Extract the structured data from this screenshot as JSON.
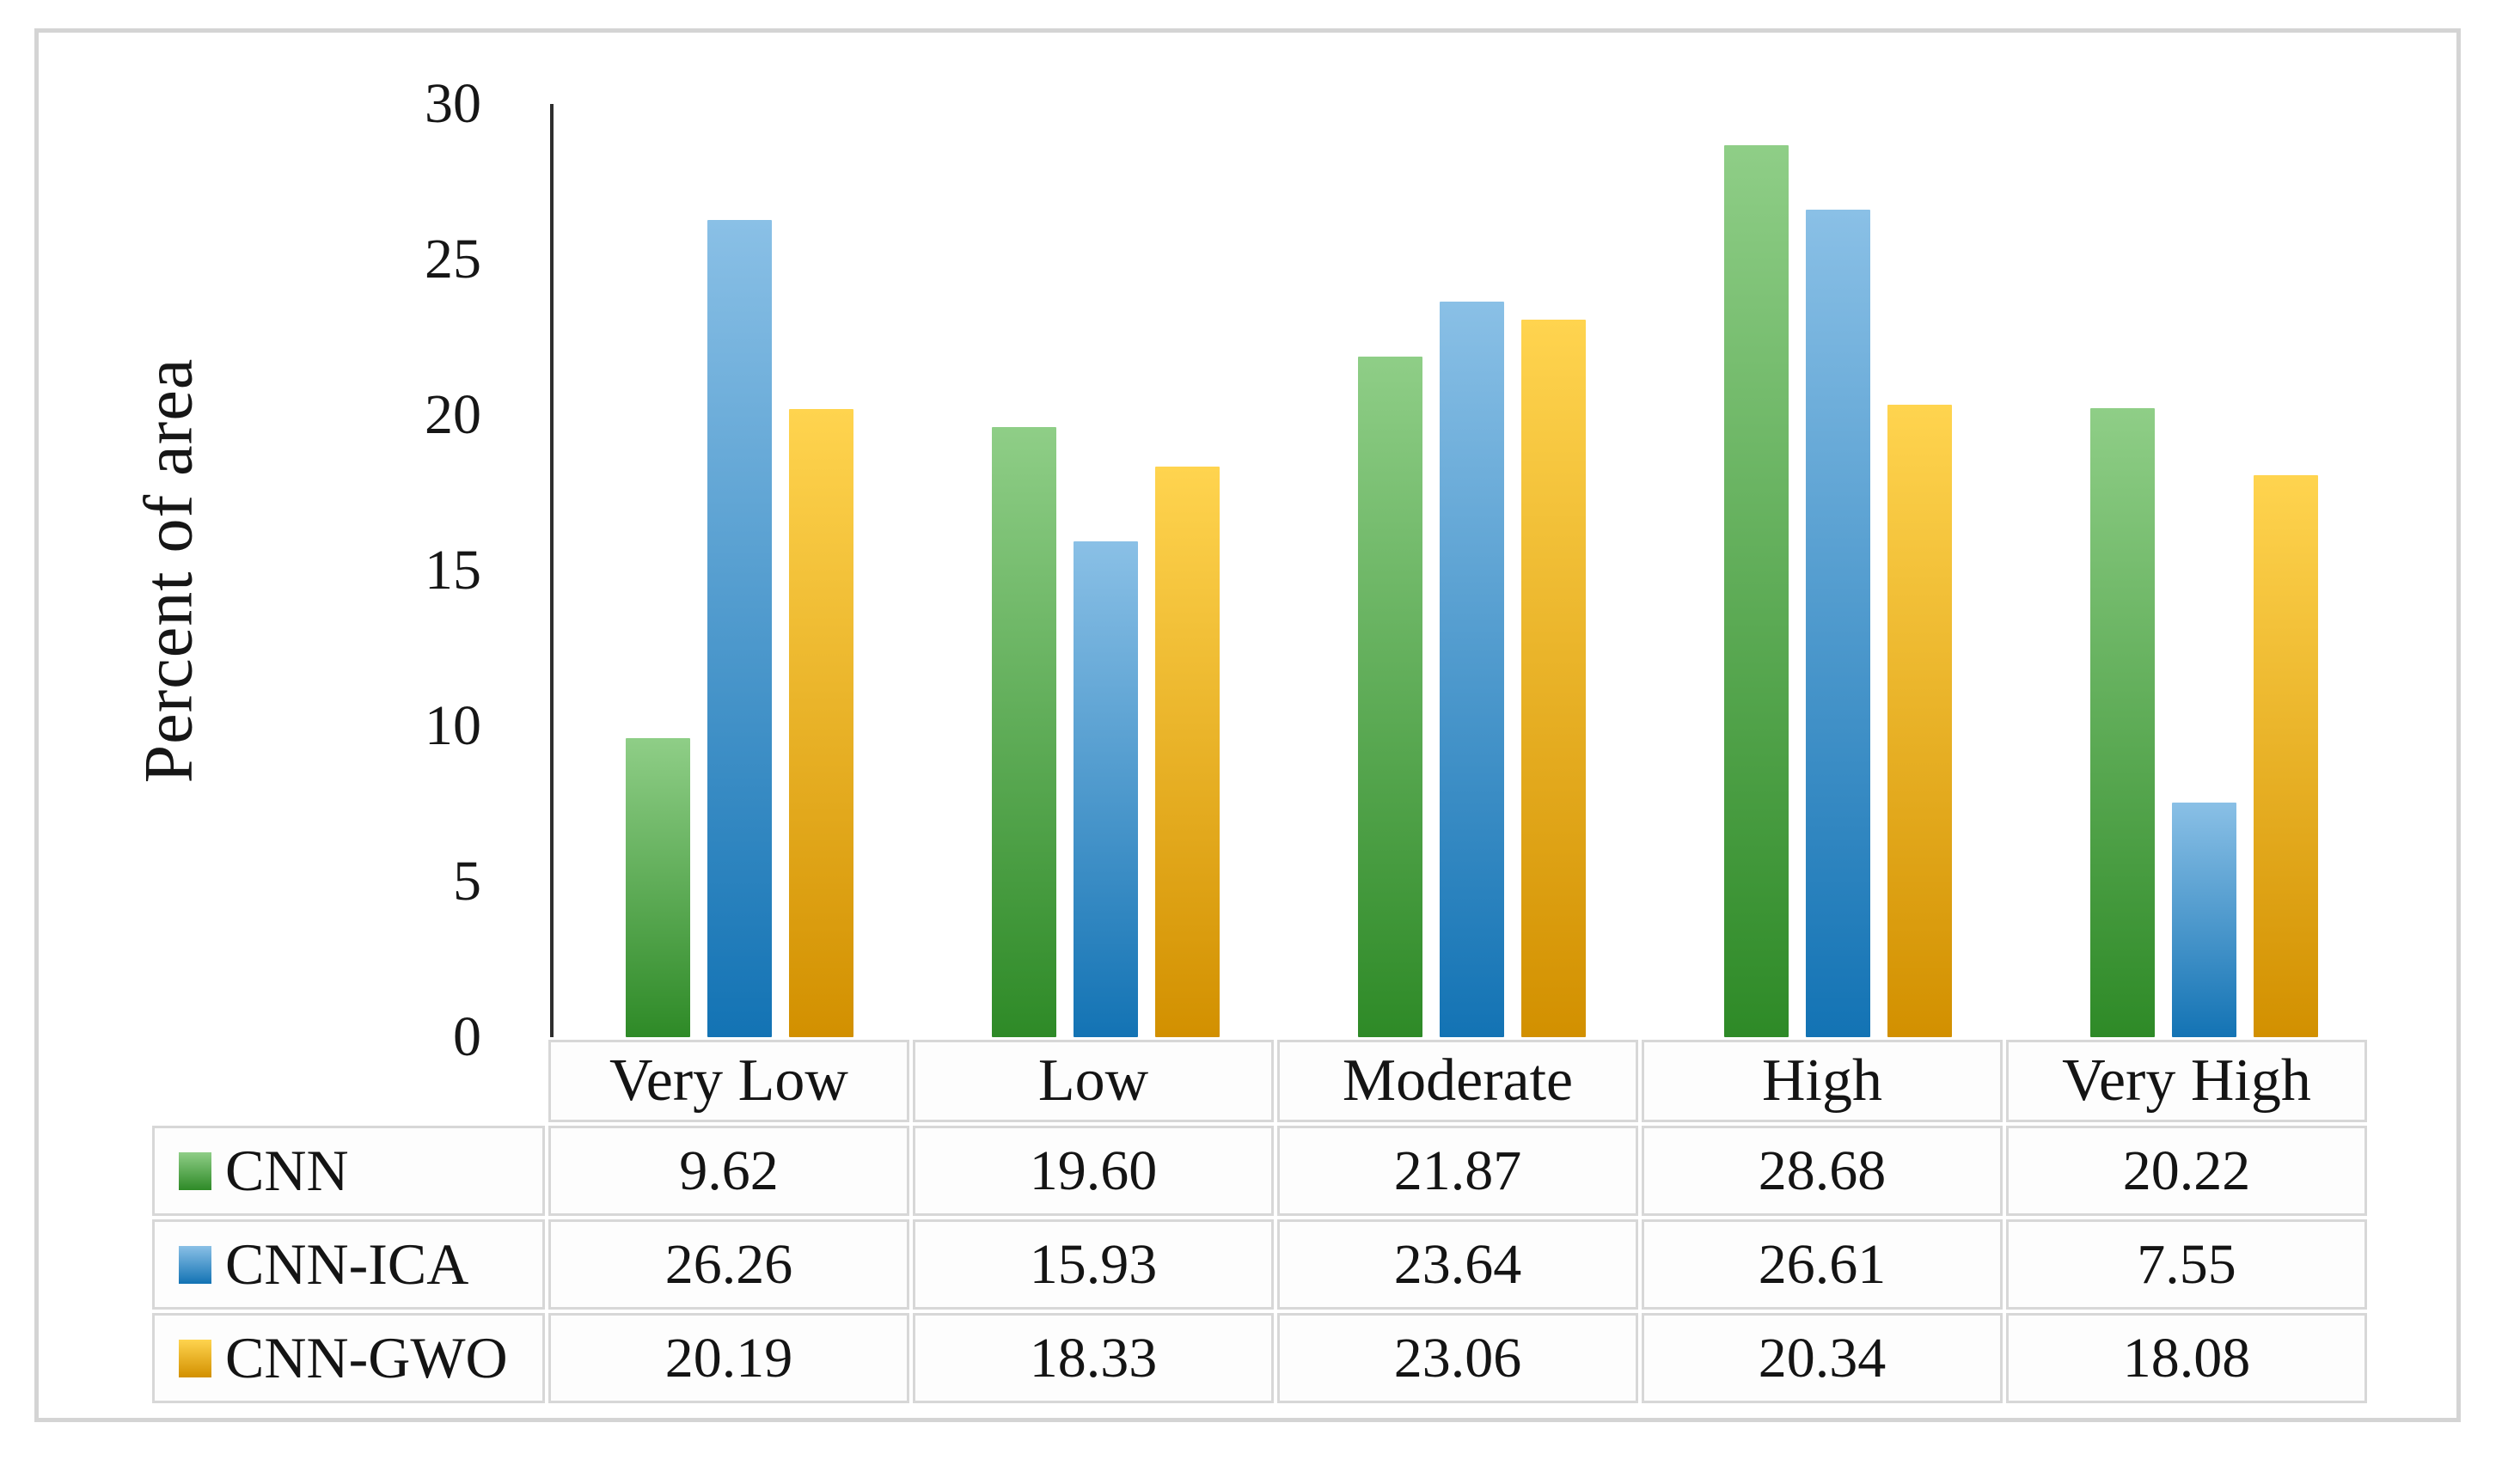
{
  "chart_data": {
    "type": "bar",
    "title": "",
    "ylabel": "Percent of area",
    "xlabel": "",
    "ylim": [
      0,
      30
    ],
    "yticks": [
      0,
      5,
      10,
      15,
      20,
      25,
      30
    ],
    "grid": false,
    "legend_position": "data-table-left-column",
    "categories": [
      "Very Low",
      "Low",
      "Moderate",
      "High",
      "Very High"
    ],
    "series": [
      {
        "name": "CNN",
        "color_top": "#8fce87",
        "color_bottom": "#2e8a27",
        "values": [
          9.62,
          19.6,
          21.87,
          28.68,
          20.22
        ],
        "display": [
          "9.62",
          "19.60",
          "21.87",
          "28.68",
          "20.22"
        ]
      },
      {
        "name": "CNN-ICA",
        "color_top": "#8ac0e6",
        "color_bottom": "#1373b4",
        "values": [
          26.26,
          15.93,
          23.64,
          26.61,
          7.55
        ],
        "display": [
          "26.26",
          "15.93",
          "23.64",
          "26.61",
          "7.55"
        ]
      },
      {
        "name": "CNN-GWO",
        "color_top": "#ffd44f",
        "color_bottom": "#d29000",
        "values": [
          20.19,
          18.33,
          23.06,
          20.34,
          18.08
        ],
        "display": [
          "20.19",
          "18.33",
          "23.06",
          "20.34",
          "18.08"
        ]
      }
    ],
    "colors": {
      "axis_line": "#2e2e2e",
      "table_border": "#d7d7d7",
      "frame_border": "#d4d4d4",
      "text": "#161616"
    }
  }
}
